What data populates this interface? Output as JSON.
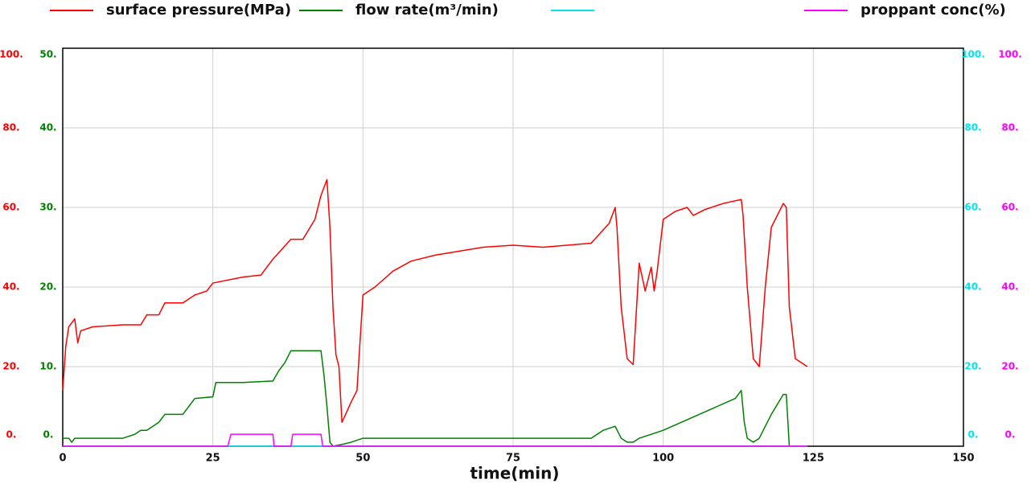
{
  "chart_data": {
    "type": "line",
    "xlabel": "time(min)",
    "xlim": [
      0,
      150
    ],
    "xticks": [
      0,
      25,
      50,
      75,
      100,
      125,
      150
    ],
    "grid": true,
    "axes": [
      {
        "side": "left",
        "color": "#ff0000",
        "ylim": [
          0,
          100
        ],
        "yticks": [
          {
            "value": 0,
            "label": "0."
          },
          {
            "value": 20,
            "label": "20."
          },
          {
            "value": 40,
            "label": "40."
          },
          {
            "value": 60,
            "label": "60."
          },
          {
            "value": 80,
            "label": "80."
          },
          {
            "value": 100,
            "label": "100."
          }
        ]
      },
      {
        "side": "left",
        "color": "#008000",
        "ylim": [
          0,
          50
        ],
        "yticks": [
          {
            "value": 0,
            "label": "0."
          },
          {
            "value": 10,
            "label": "10."
          },
          {
            "value": 20,
            "label": "20."
          },
          {
            "value": 30,
            "label": "30."
          },
          {
            "value": 40,
            "label": "40."
          },
          {
            "value": 50,
            "label": "50."
          }
        ]
      },
      {
        "side": "right",
        "color": "#00e5ee",
        "ylim": [
          0,
          100
        ],
        "yticks": [
          {
            "value": 0,
            "label": "0."
          },
          {
            "value": 20,
            "label": "20."
          },
          {
            "value": 40,
            "label": "40."
          },
          {
            "value": 60,
            "label": "60."
          },
          {
            "value": 80,
            "label": "80."
          },
          {
            "value": 100,
            "label": "100."
          }
        ]
      },
      {
        "side": "right",
        "color": "#ff00ff",
        "ylim": [
          0,
          100
        ],
        "yticks": [
          {
            "value": 0,
            "label": "0."
          },
          {
            "value": 20,
            "label": "20."
          },
          {
            "value": 40,
            "label": "40."
          },
          {
            "value": 60,
            "label": "60."
          },
          {
            "value": 80,
            "label": "80."
          },
          {
            "value": 100,
            "label": "100."
          }
        ]
      }
    ],
    "series": [
      {
        "name": "surface pressure(MPa)",
        "color": "#ff0000",
        "axis": 0,
        "x": [
          0,
          0.5,
          1,
          2,
          2.5,
          3,
          5,
          10,
          13,
          14,
          16,
          17,
          20,
          22,
          24,
          25,
          30,
          33,
          35,
          38,
          40,
          42,
          43,
          44,
          44.5,
          45,
          45.5,
          46,
          46.5,
          48,
          49,
          50,
          52,
          55,
          58,
          62,
          70,
          75,
          80,
          88,
          91,
          92,
          92.3,
          93,
          94,
          95,
          96,
          97,
          98,
          98.5,
          99,
          100,
          102,
          104,
          105,
          107,
          110,
          113,
          113.3,
          114,
          115,
          116,
          117,
          118,
          120,
          120.5,
          121,
          122,
          124
        ],
        "values": [
          14,
          25,
          30,
          32,
          26,
          29,
          30,
          30.5,
          30.5,
          33,
          33,
          36,
          36,
          38,
          39,
          41,
          42.5,
          43,
          47,
          52,
          52,
          57,
          63,
          67,
          55,
          35,
          23,
          20,
          6,
          11,
          14,
          38,
          40,
          44,
          46.5,
          48,
          50,
          50.5,
          50,
          51,
          56,
          60,
          55,
          35,
          22,
          20.5,
          46,
          39,
          45,
          39,
          44,
          57,
          59,
          60,
          58,
          59.5,
          61,
          62,
          58,
          40,
          22,
          20,
          40,
          55,
          61,
          60,
          35,
          22,
          20
        ]
      },
      {
        "name": "flow rate(m³/min)",
        "color": "#008000",
        "axis": 1,
        "x": [
          0,
          1,
          1.5,
          2,
          10,
          12,
          13,
          14,
          16,
          17,
          20,
          21,
          22,
          25,
          25.5,
          30,
          35,
          36,
          37,
          38,
          43,
          43.5,
          44,
          44.5,
          45,
          47,
          48,
          50,
          60,
          80,
          88,
          90,
          92,
          93,
          94,
          95,
          96,
          98,
          100,
          103,
          106,
          109,
          112,
          113,
          113.5,
          114,
          115,
          116,
          118,
          120,
          120.5,
          121
        ],
        "values": [
          1,
          1,
          0.5,
          1,
          1,
          1.5,
          2,
          2,
          3,
          4,
          4,
          5,
          6,
          6.2,
          8,
          8,
          8.2,
          9.5,
          10.5,
          12,
          12,
          9,
          5,
          0.5,
          0,
          0.3,
          0.5,
          1,
          1,
          1,
          1,
          2,
          2.5,
          1,
          0.5,
          0.5,
          1,
          1.5,
          2,
          3,
          4,
          5,
          6,
          7,
          3,
          1,
          0.5,
          1,
          4,
          6.5,
          6.5,
          0
        ]
      },
      {
        "name": null,
        "color": "#00e5ee",
        "axis": 2,
        "x": [
          0,
          124
        ],
        "values": [
          0,
          0
        ]
      },
      {
        "name": "proppant conc(%)",
        "color": "#ff00ff",
        "axis": 3,
        "x": [
          0,
          27.5,
          28,
          35,
          35.2,
          38,
          38.3,
          43,
          43.3,
          124
        ],
        "values": [
          0,
          0,
          3,
          3,
          0,
          0,
          3,
          3,
          0,
          0
        ]
      }
    ]
  }
}
